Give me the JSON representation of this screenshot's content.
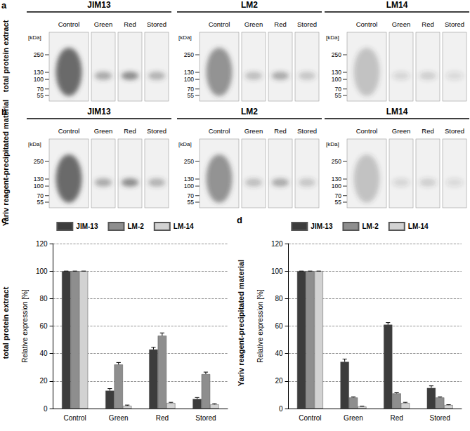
{
  "blots": [
    {
      "panel": "a",
      "side_label": "total protein extract",
      "marker_unit": "[kDa]",
      "groups": [
        {
          "antibody": "JIM13",
          "lanes": [
            "Control",
            "Green",
            "Red",
            "Stored"
          ],
          "markers": [
            250,
            130,
            100,
            70,
            55
          ]
        },
        {
          "antibody": "LM2",
          "lanes": [
            "Control",
            "Green",
            "Red",
            "Stored"
          ],
          "markers": [
            250,
            130,
            100,
            70,
            55
          ]
        },
        {
          "antibody": "LM14",
          "lanes": [
            "Control",
            "Green",
            "Red",
            "Stored"
          ],
          "markers": [
            250,
            130,
            100,
            70,
            55
          ]
        }
      ]
    },
    {
      "panel": "b",
      "side_label": "Yariv reagent-precipitated material",
      "marker_unit": "[kDa]",
      "groups": [
        {
          "antibody": "JIM13",
          "lanes": [
            "Control",
            "Green",
            "Red",
            "Stored"
          ],
          "markers": [
            250,
            130,
            100,
            70,
            55
          ]
        },
        {
          "antibody": "LM2",
          "lanes": [
            "Control",
            "Green",
            "Red",
            "Stored"
          ],
          "markers": [
            250,
            130,
            100,
            70,
            55
          ]
        },
        {
          "antibody": "LM14",
          "lanes": [
            "Control",
            "Green",
            "Red",
            "Stored"
          ],
          "markers": [
            250,
            130,
            100,
            70,
            55
          ]
        }
      ]
    }
  ],
  "chart_data": [
    {
      "type": "bar",
      "panel": "c",
      "side_label": "total protein extract",
      "y_label": "Relative expression [%]",
      "categories": [
        "Control",
        "Green",
        "Red",
        "Stored"
      ],
      "series": [
        {
          "name": "JIM-13",
          "color": "#3c3c3c",
          "values": [
            100,
            13,
            43,
            7
          ],
          "errors": [
            0,
            1.5,
            1.5,
            1
          ]
        },
        {
          "name": "LM-2",
          "color": "#8e8e8e",
          "values": [
            100,
            32,
            53,
            25
          ],
          "errors": [
            0,
            1.5,
            2,
            1.5
          ]
        },
        {
          "name": "LM-14",
          "color": "#d2d2d2",
          "values": [
            100,
            2,
            4,
            3
          ],
          "errors": [
            0,
            0.5,
            0.5,
            0.5
          ]
        }
      ],
      "ylim": [
        0,
        120
      ],
      "yticks": [
        0,
        20,
        40,
        60,
        80,
        100,
        120
      ],
      "grid": true,
      "legend": "top"
    },
    {
      "type": "bar",
      "panel": "d",
      "side_label": "Yariv reagent-precipitated material",
      "y_label": "Relative expression [%]",
      "categories": [
        "Control",
        "Green",
        "Red",
        "Stored"
      ],
      "series": [
        {
          "name": "JIM-13",
          "color": "#3c3c3c",
          "values": [
            100,
            34,
            61,
            15
          ],
          "errors": [
            0,
            2,
            1.5,
            1.5
          ]
        },
        {
          "name": "LM-2",
          "color": "#8e8e8e",
          "values": [
            100,
            8,
            11,
            8
          ],
          "errors": [
            0,
            0.5,
            0.5,
            0.5
          ]
        },
        {
          "name": "LM-14",
          "color": "#d2d2d2",
          "values": [
            100,
            1.5,
            4,
            2.5
          ],
          "errors": [
            0,
            0.3,
            0.5,
            0.3
          ]
        }
      ],
      "ylim": [
        0,
        120
      ],
      "yticks": [
        0,
        20,
        40,
        60,
        80,
        100,
        120
      ],
      "grid": true,
      "legend": "top"
    }
  ]
}
